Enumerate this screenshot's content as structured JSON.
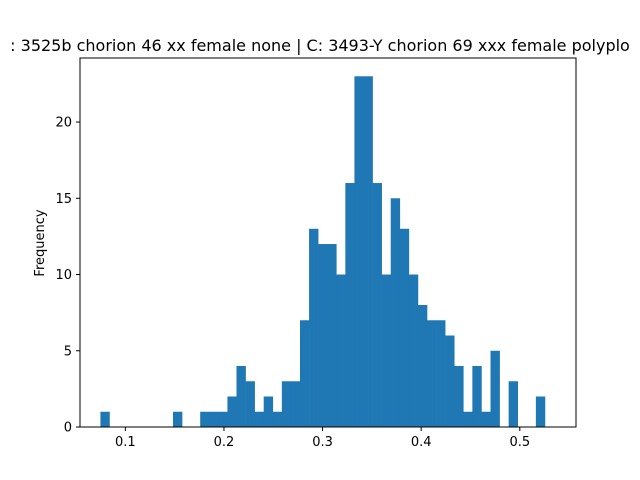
{
  "chart_data": {
    "type": "bar",
    "title": ": 3525b chorion 46 xx female none | C: 3493-Y chorion 69 xxx female polyplo",
    "xlabel": "",
    "ylabel": "Frequency",
    "xlim": [
      0.054,
      0.557
    ],
    "ylim": [
      0,
      24.2
    ],
    "x_ticks": [
      0.1,
      0.2,
      0.3,
      0.4,
      0.5
    ],
    "x_tick_labels": [
      "0.1",
      "0.2",
      "0.3",
      "0.4",
      "0.5"
    ],
    "y_ticks": [
      0,
      5,
      10,
      15,
      20
    ],
    "y_tick_labels": [
      "0",
      "5",
      "10",
      "15",
      "20"
    ],
    "bar_color": "#1f77b4",
    "bin_start": 0.0747,
    "bin_width": 0.0092,
    "values": [
      1,
      0,
      0,
      0,
      0,
      0,
      0,
      0,
      1,
      0,
      0,
      1,
      1,
      1,
      2,
      4,
      3,
      1,
      2,
      1,
      3,
      3,
      7,
      13,
      12,
      12,
      10,
      16,
      23,
      23,
      16,
      10,
      15,
      13,
      10,
      8,
      7,
      7,
      6,
      4,
      1,
      4,
      1,
      5,
      0,
      3,
      0,
      0,
      2
    ]
  }
}
